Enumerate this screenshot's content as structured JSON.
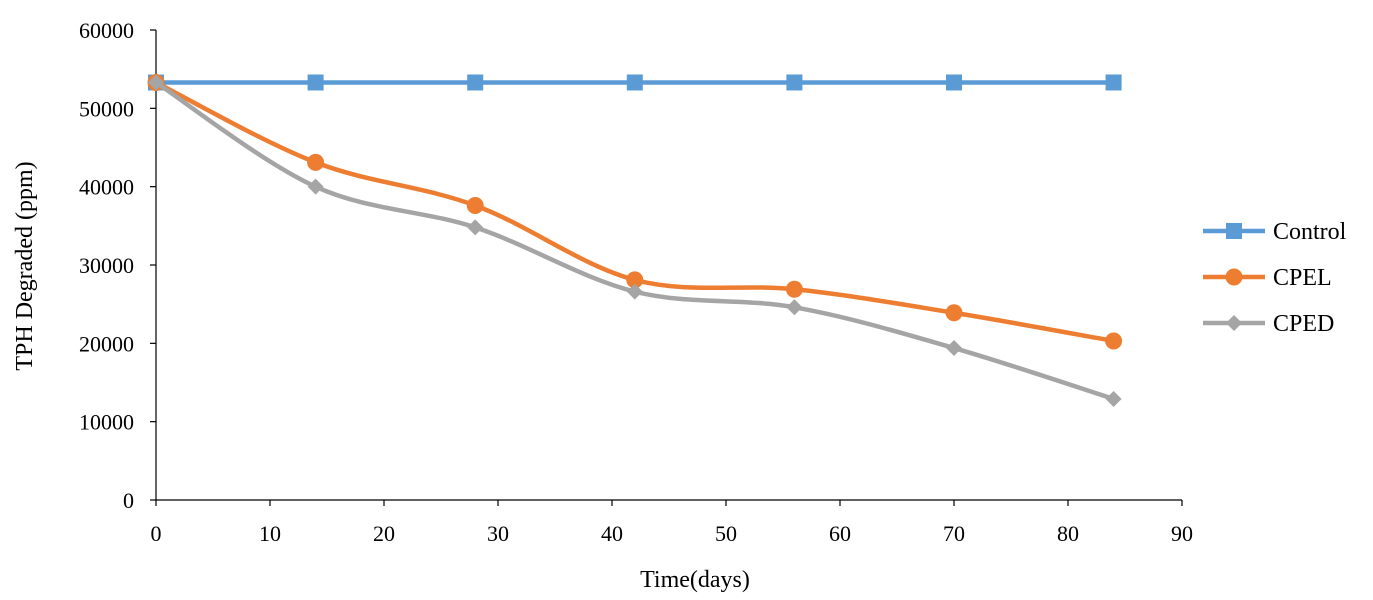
{
  "chart_data": {
    "type": "line",
    "title": "",
    "xlabel": "Time(days)",
    "ylabel": "TPH Degraded (ppm)",
    "xlim": [
      0,
      90
    ],
    "ylim": [
      0,
      60000
    ],
    "x_ticks": [
      0,
      10,
      20,
      30,
      40,
      50,
      60,
      70,
      80,
      90
    ],
    "y_ticks": [
      0,
      10000,
      20000,
      30000,
      40000,
      50000,
      60000
    ],
    "x_tick_labels": [
      "0",
      "10",
      "20",
      "30",
      "40",
      "50",
      "60",
      "70",
      "80",
      "90"
    ],
    "y_tick_labels": [
      "0",
      "10000",
      "20000",
      "30000",
      "40000",
      "50000",
      "60000"
    ],
    "grid": false,
    "legend_position": "right",
    "smooth": true,
    "x": [
      0,
      14,
      28,
      42,
      56,
      70,
      84
    ],
    "series": [
      {
        "name": "Control",
        "color": "#5B9BD5",
        "marker": "square",
        "values": [
          53300,
          53300,
          53300,
          53300,
          53300,
          53300,
          53300
        ]
      },
      {
        "name": "CPEL",
        "color": "#ED7D31",
        "marker": "circle",
        "values": [
          53300,
          43100,
          37600,
          28100,
          26900,
          23900,
          20300
        ]
      },
      {
        "name": "CPED",
        "color": "#A5A5A5",
        "marker": "diamond",
        "values": [
          53300,
          40000,
          34800,
          26600,
          24600,
          19400,
          12900
        ]
      }
    ]
  }
}
